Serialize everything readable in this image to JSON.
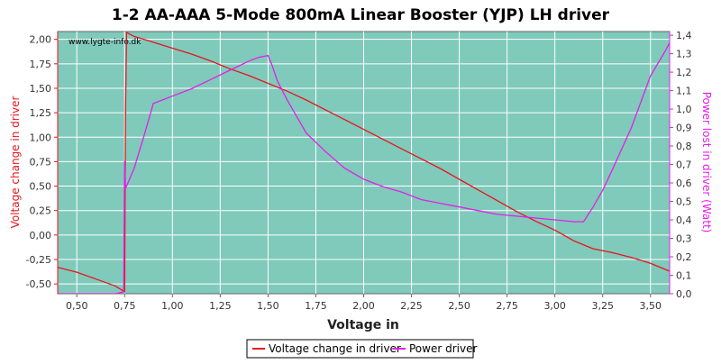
{
  "chart_data": {
    "type": "line",
    "title": "1-2 AA-AAA 5-Mode 800mA Linear Booster (YJP) LH driver",
    "watermark": "www.lygte-info.dk",
    "xlabel": "Voltage in",
    "ylabel_left": "Voltage change in driver",
    "ylabel_right": "Power lost in driver (Watt)",
    "xlim": [
      0.4,
      3.6
    ],
    "ylim_left": [
      -0.6,
      2.08
    ],
    "ylim_right": [
      0.0,
      1.42
    ],
    "x_ticks": [
      "0,50",
      "0,75",
      "1,00",
      "1,25",
      "1,50",
      "1,75",
      "2,00",
      "2,25",
      "2,50",
      "2,75",
      "3,00",
      "3,25",
      "3,50"
    ],
    "x_tick_values": [
      0.5,
      0.75,
      1.0,
      1.25,
      1.5,
      1.75,
      2.0,
      2.25,
      2.5,
      2.75,
      3.0,
      3.25,
      3.5
    ],
    "y_left_ticks": [
      "-0,50",
      "-0,25",
      "0,00",
      "0,25",
      "0,50",
      "0,75",
      "1,00",
      "1,25",
      "1,50",
      "1,75",
      "2,00"
    ],
    "y_left_tick_values": [
      -0.5,
      -0.25,
      0.0,
      0.25,
      0.5,
      0.75,
      1.0,
      1.25,
      1.5,
      1.75,
      2.0
    ],
    "y_right_ticks": [
      "0,0",
      "0,1",
      "0,2",
      "0,3",
      "0,4",
      "0,5",
      "0,6",
      "0,7",
      "0,8",
      "0,9",
      "1,0",
      "1,1",
      "1,2",
      "1,3",
      "1,4"
    ],
    "y_right_tick_values": [
      0.0,
      0.1,
      0.2,
      0.3,
      0.4,
      0.5,
      0.6,
      0.7,
      0.8,
      0.9,
      1.0,
      1.1,
      1.2,
      1.3,
      1.4
    ],
    "grid": true,
    "legend_position": "bottom",
    "colors": {
      "plot_background": "#7fcabb",
      "grid": "#ffffff",
      "series_voltage": "#e8141c",
      "series_power": "#e51ee5",
      "title": "#000000",
      "left_axis": "#e8141c",
      "right_axis": "#e51ee5"
    },
    "series": [
      {
        "name": "Voltage change in driver",
        "axis": "left",
        "x": [
          0.4,
          0.5,
          0.6,
          0.7,
          0.75,
          0.755,
          0.76,
          0.8,
          0.9,
          1.0,
          1.1,
          1.2,
          1.3,
          1.4,
          1.5,
          1.6,
          1.7,
          1.8,
          1.9,
          2.0,
          2.1,
          2.2,
          2.3,
          2.4,
          2.5,
          2.6,
          2.7,
          2.8,
          2.9,
          3.0,
          3.1,
          3.2,
          3.3,
          3.4,
          3.5,
          3.6
        ],
        "y": [
          -0.33,
          -0.38,
          -0.45,
          -0.52,
          -0.58,
          1.3,
          2.07,
          2.03,
          1.97,
          1.91,
          1.85,
          1.78,
          1.7,
          1.63,
          1.55,
          1.47,
          1.38,
          1.28,
          1.18,
          1.08,
          0.98,
          0.88,
          0.78,
          0.68,
          0.57,
          0.46,
          0.35,
          0.24,
          0.14,
          0.05,
          -0.06,
          -0.14,
          -0.18,
          -0.23,
          -0.29,
          -0.37
        ]
      },
      {
        "name": "Power driver",
        "axis": "right",
        "x": [
          0.4,
          0.5,
          0.6,
          0.7,
          0.745,
          0.75,
          0.755,
          0.8,
          0.85,
          0.9,
          1.0,
          1.1,
          1.2,
          1.3,
          1.4,
          1.45,
          1.5,
          1.52,
          1.55,
          1.6,
          1.7,
          1.8,
          1.9,
          2.0,
          2.1,
          2.2,
          2.3,
          2.4,
          2.5,
          2.6,
          2.7,
          2.8,
          2.9,
          3.0,
          3.1,
          3.15,
          3.2,
          3.25,
          3.3,
          3.4,
          3.5,
          3.58,
          3.6
        ],
        "y": [
          0.0,
          0.0,
          0.0,
          0.0,
          0.01,
          0.72,
          0.57,
          0.68,
          0.85,
          1.03,
          1.07,
          1.11,
          1.16,
          1.21,
          1.26,
          1.28,
          1.29,
          1.24,
          1.15,
          1.05,
          0.87,
          0.77,
          0.68,
          0.62,
          0.58,
          0.55,
          0.51,
          0.49,
          0.47,
          0.45,
          0.43,
          0.42,
          0.41,
          0.4,
          0.39,
          0.39,
          0.47,
          0.56,
          0.67,
          0.9,
          1.18,
          1.32,
          1.36
        ]
      }
    ]
  }
}
